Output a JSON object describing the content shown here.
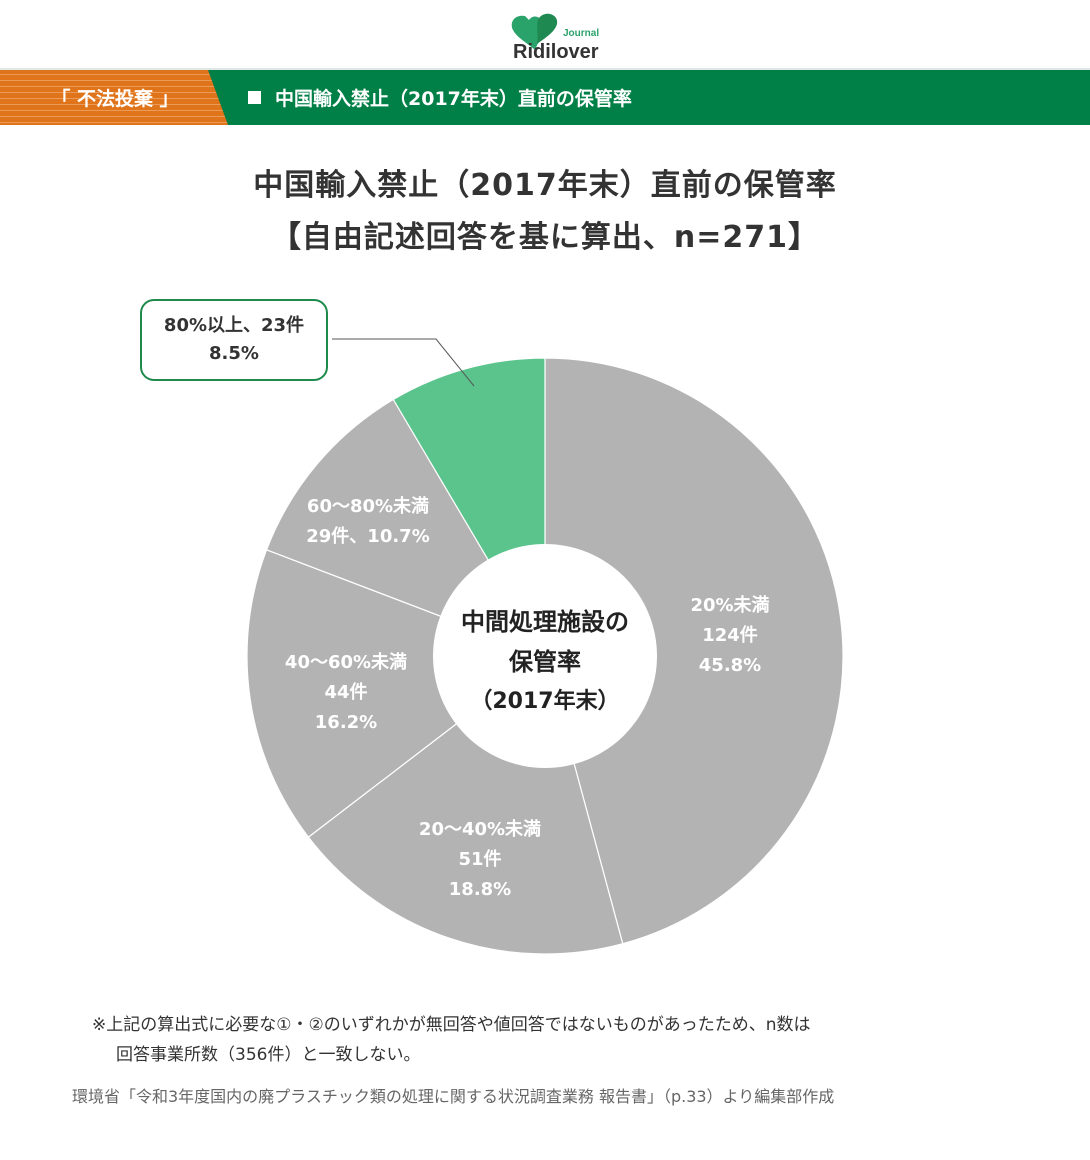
{
  "header": {
    "logo_text": "Ridilover",
    "logo_subtext": "Journal",
    "tag_label": "「 不法投棄 」",
    "title": "中国輸入禁止（2017年末）直前の保管率",
    "colors": {
      "orange": "#e0741a",
      "green": "#007f46"
    }
  },
  "chart_title": {
    "line1": "中国輸入禁止（2017年末）直前の保管率",
    "line2": "【自由記述回答を基に算出、n=271】"
  },
  "center_label": {
    "line1": "中間処理施設の",
    "line2": "保管率",
    "line3": "（2017年末）"
  },
  "callout": {
    "line1": "80%以上、23件",
    "line2": "8.5%"
  },
  "slice_labels": [
    {
      "l1": "20%未満",
      "l2": "124件",
      "l3": "45.8%"
    },
    {
      "l1": "20〜40%未満",
      "l2": "51件",
      "l3": "18.8%"
    },
    {
      "l1": "40〜60%未満",
      "l2": "44件",
      "l3": "16.2%"
    },
    {
      "l1": "60〜80%未満",
      "l2": "29件、10.7%"
    }
  ],
  "chart_data": {
    "type": "pie",
    "subtype": "donut",
    "title": "中国輸入禁止（2017年末）直前の保管率【自由記述回答を基に算出、n=271】",
    "center_text": "中間処理施設の保管率（2017年末）",
    "n": 271,
    "categories": [
      "20%未満",
      "20〜40%未満",
      "40〜60%未満",
      "60〜80%未満",
      "80%以上"
    ],
    "counts": [
      124,
      51,
      44,
      29,
      23
    ],
    "values": [
      45.8,
      18.8,
      16.2,
      10.7,
      8.5
    ],
    "unit": "%",
    "colors": [
      "#b3b3b3",
      "#b3b3b3",
      "#b3b3b3",
      "#b3b3b3",
      "#5ac48c"
    ],
    "start_angle": "12 o'clock, clockwise",
    "highlighted": "80%以上"
  },
  "footnote": {
    "line1": "※上記の算出式に必要な①・②のいずれかが無回答や値回答ではないものがあったため、n数は",
    "line2": "回答事業所数（356件）と一致しない。"
  },
  "source": "環境省「令和3年度国内の廃プラスチック類の処理に関する状況調査業務 報告書」（p.33）より編集部作成"
}
